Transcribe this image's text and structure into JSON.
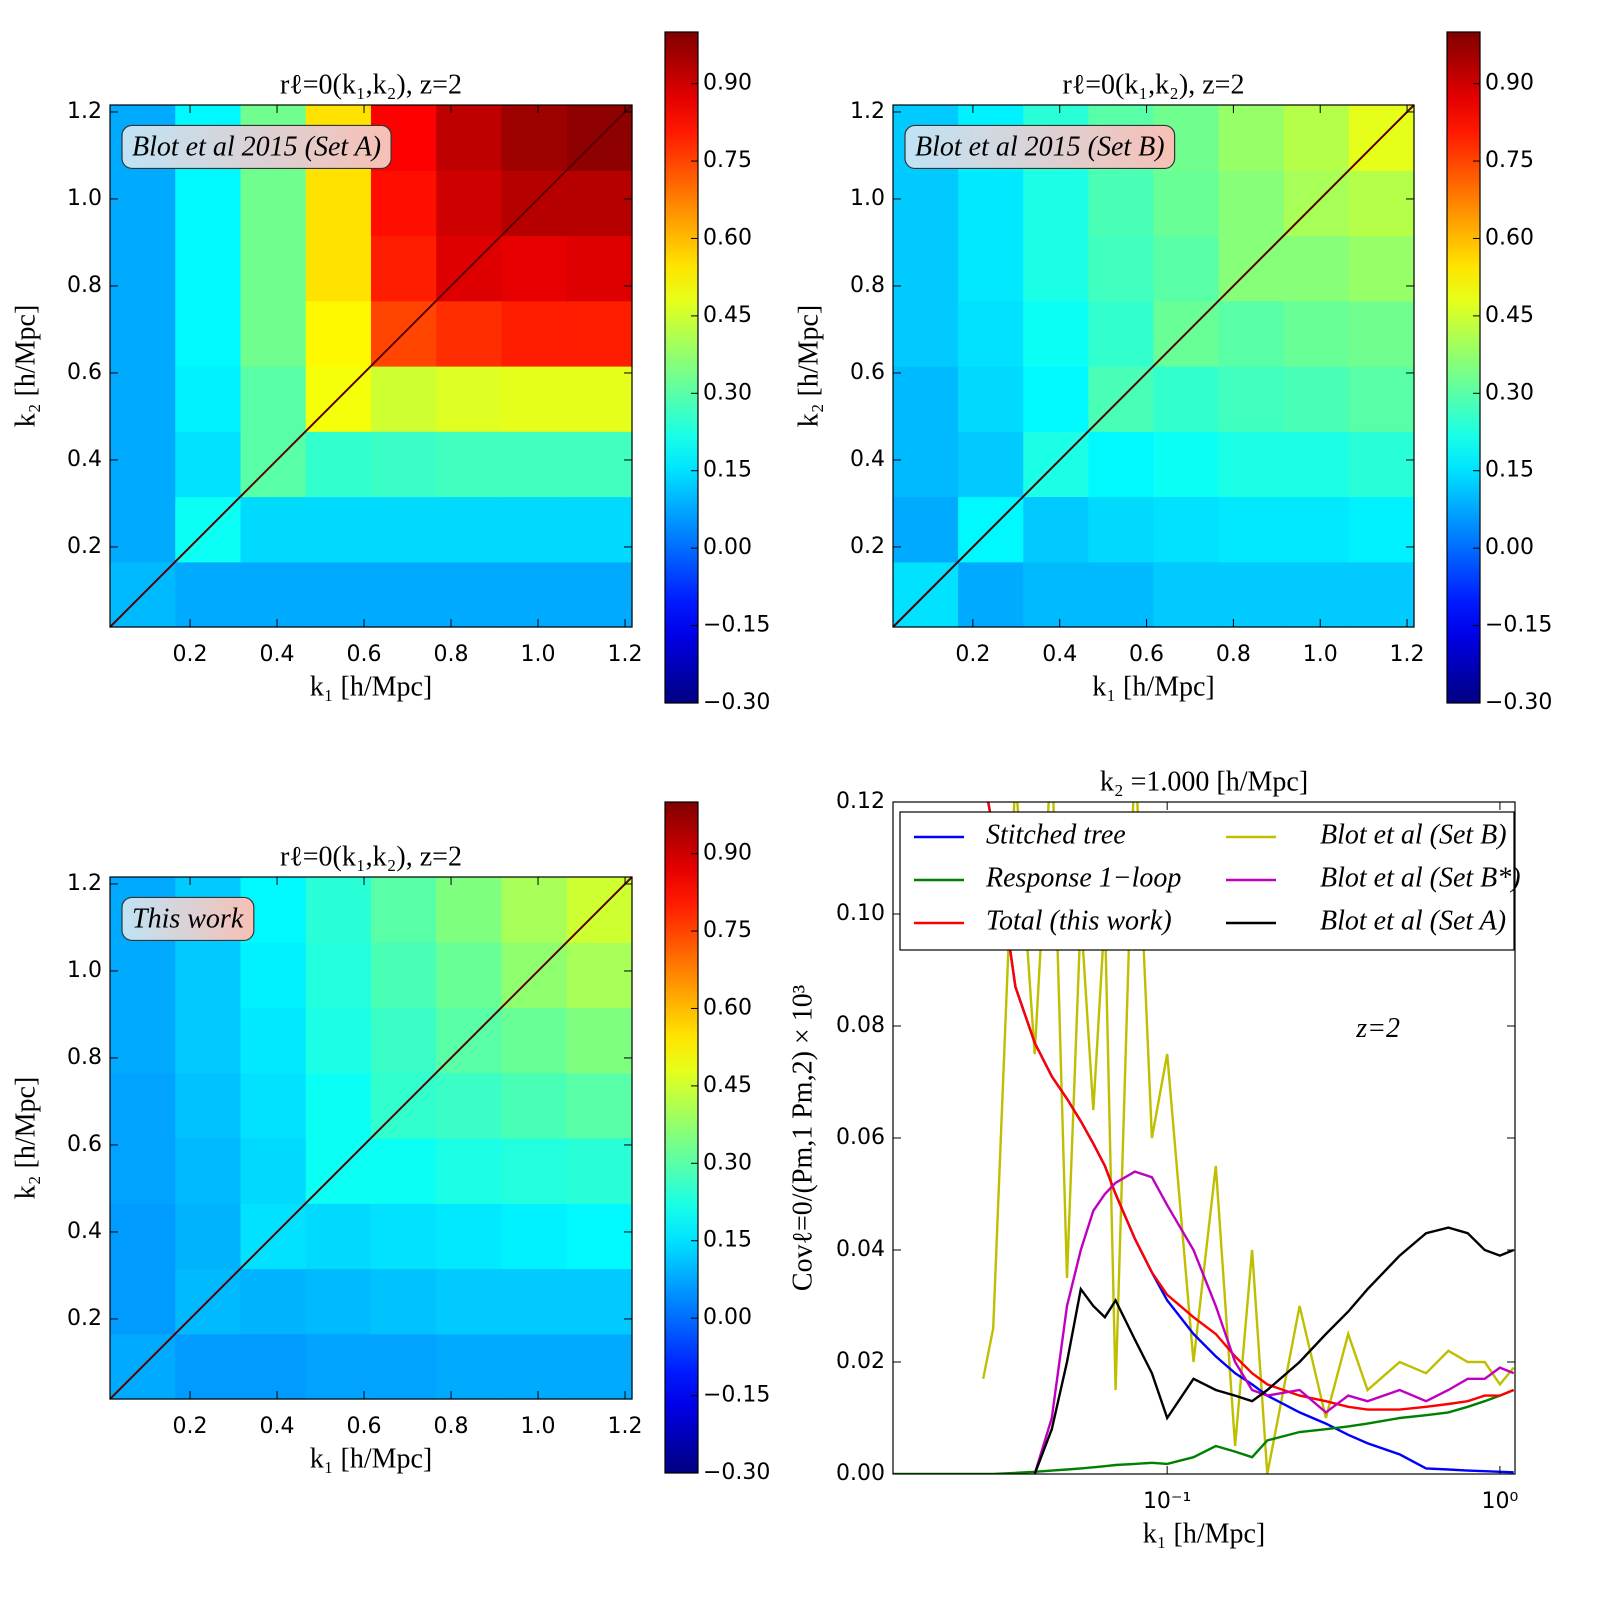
{
  "chart_data": [
    {
      "type": "heatmap",
      "title": "rℓ=0(k₁,k₂), z=2",
      "xlabel": "k₁ [h/Mpc]",
      "ylabel": "k₂ [h/Mpc]",
      "annotation": "Blot et al 2015 (Set A)",
      "x": [
        0.091,
        0.241,
        0.391,
        0.541,
        0.691,
        0.841,
        0.991,
        1.141
      ],
      "y": [
        0.091,
        0.241,
        0.391,
        0.541,
        0.691,
        0.841,
        0.991,
        1.141
      ],
      "z": [
        [
          0.1,
          0.08,
          0.08,
          0.08,
          0.08,
          0.08,
          0.08,
          0.08
        ],
        [
          0.08,
          0.2,
          0.14,
          0.14,
          0.14,
          0.14,
          0.14,
          0.14
        ],
        [
          0.08,
          0.15,
          0.3,
          0.25,
          0.26,
          0.27,
          0.27,
          0.27
        ],
        [
          0.08,
          0.17,
          0.3,
          0.5,
          0.45,
          0.47,
          0.48,
          0.48
        ],
        [
          0.08,
          0.18,
          0.33,
          0.52,
          0.75,
          0.78,
          0.8,
          0.8
        ],
        [
          0.08,
          0.18,
          0.33,
          0.55,
          0.8,
          0.88,
          0.87,
          0.88
        ],
        [
          0.08,
          0.18,
          0.33,
          0.55,
          0.82,
          0.9,
          0.93,
          0.93
        ],
        [
          0.08,
          0.18,
          0.33,
          0.55,
          0.84,
          0.92,
          0.96,
          0.98
        ]
      ],
      "xlim": [
        0.016,
        1.216
      ],
      "ylim": [
        0.016,
        1.216
      ],
      "xticks": [
        0.2,
        0.4,
        0.6,
        0.8,
        {
          "value": 1,
          "label": "1.0"
        },
        1.2
      ],
      "yticks": [
        0.2,
        0.4,
        0.6,
        0.8,
        {
          "value": 1,
          "label": "1.0"
        },
        1.2
      ],
      "zlim": [
        -0.3,
        1.0
      ],
      "zticks": [
        {
          "value": 0.9,
          "label": "0.90"
        },
        0.75,
        {
          "value": 0.6,
          "label": "0.60"
        },
        0.45,
        {
          "value": 0.3,
          "label": "0.30"
        },
        0.15,
        {
          "value": 0,
          "label": "0.00"
        },
        {
          "value": -0.15,
          "label": "−0.15"
        },
        {
          "value": -0.3,
          "label": "−0.30"
        }
      ]
    },
    {
      "type": "heatmap",
      "title": "rℓ=0(k₁,k₂), z=2",
      "xlabel": "k₁ [h/Mpc]",
      "ylabel": "k₂ [h/Mpc]",
      "annotation": "Blot et al 2015 (Set B)",
      "x": [
        0.091,
        0.241,
        0.391,
        0.541,
        0.691,
        0.841,
        0.991,
        1.141
      ],
      "y": [
        0.091,
        0.241,
        0.391,
        0.541,
        0.691,
        0.841,
        0.991,
        1.141
      ],
      "z": [
        [
          0.15,
          0.08,
          0.1,
          0.1,
          0.12,
          0.12,
          0.12,
          0.12
        ],
        [
          0.08,
          0.18,
          0.12,
          0.14,
          0.15,
          0.16,
          0.16,
          0.17
        ],
        [
          0.1,
          0.12,
          0.22,
          0.18,
          0.2,
          0.22,
          0.22,
          0.24
        ],
        [
          0.1,
          0.14,
          0.18,
          0.28,
          0.25,
          0.27,
          0.28,
          0.3
        ],
        [
          0.12,
          0.15,
          0.2,
          0.25,
          0.32,
          0.3,
          0.32,
          0.33
        ],
        [
          0.12,
          0.16,
          0.22,
          0.27,
          0.3,
          0.36,
          0.36,
          0.38
        ],
        [
          0.12,
          0.16,
          0.22,
          0.28,
          0.32,
          0.36,
          0.4,
          0.42
        ],
        [
          0.12,
          0.17,
          0.24,
          0.3,
          0.33,
          0.38,
          0.42,
          0.48
        ]
      ],
      "xlim": [
        0.016,
        1.216
      ],
      "ylim": [
        0.016,
        1.216
      ],
      "xticks": [
        0.2,
        0.4,
        0.6,
        0.8,
        {
          "value": 1,
          "label": "1.0"
        },
        1.2
      ],
      "yticks": [
        0.2,
        0.4,
        0.6,
        0.8,
        {
          "value": 1,
          "label": "1.0"
        },
        1.2
      ],
      "zlim": [
        -0.3,
        1.0
      ],
      "zticks": [
        {
          "value": 0.9,
          "label": "0.90"
        },
        0.75,
        {
          "value": 0.6,
          "label": "0.60"
        },
        0.45,
        {
          "value": 0.3,
          "label": "0.30"
        },
        0.15,
        {
          "value": 0,
          "label": "0.00"
        },
        {
          "value": -0.15,
          "label": "−0.15"
        },
        {
          "value": -0.3,
          "label": "−0.30"
        }
      ]
    },
    {
      "type": "heatmap",
      "title": "rℓ=0(k₁,k₂), z=2",
      "xlabel": "k₁ [h/Mpc]",
      "ylabel": "k₂ [h/Mpc]",
      "annotation": "This work",
      "x": [
        0.091,
        0.241,
        0.391,
        0.541,
        0.691,
        0.841,
        0.991,
        1.141
      ],
      "y": [
        0.091,
        0.241,
        0.391,
        0.541,
        0.691,
        0.841,
        0.991,
        1.141
      ],
      "z": [
        [
          0.08,
          0.06,
          0.06,
          0.07,
          0.07,
          0.08,
          0.08,
          0.08
        ],
        [
          0.06,
          0.1,
          0.09,
          0.1,
          0.11,
          0.12,
          0.12,
          0.12
        ],
        [
          0.06,
          0.09,
          0.15,
          0.14,
          0.15,
          0.16,
          0.17,
          0.18
        ],
        [
          0.07,
          0.1,
          0.14,
          0.2,
          0.2,
          0.22,
          0.23,
          0.24
        ],
        [
          0.07,
          0.11,
          0.15,
          0.2,
          0.25,
          0.26,
          0.28,
          0.3
        ],
        [
          0.08,
          0.12,
          0.16,
          0.22,
          0.26,
          0.3,
          0.32,
          0.35
        ],
        [
          0.08,
          0.12,
          0.17,
          0.23,
          0.28,
          0.32,
          0.37,
          0.4
        ],
        [
          0.08,
          0.12,
          0.18,
          0.24,
          0.3,
          0.35,
          0.4,
          0.45
        ]
      ],
      "xlim": [
        0.016,
        1.216
      ],
      "ylim": [
        0.016,
        1.216
      ],
      "xticks": [
        0.2,
        0.4,
        0.6,
        0.8,
        {
          "value": 1,
          "label": "1.0"
        },
        1.2
      ],
      "yticks": [
        0.2,
        0.4,
        0.6,
        0.8,
        {
          "value": 1,
          "label": "1.0"
        },
        1.2
      ],
      "zlim": [
        -0.3,
        1.0
      ],
      "zticks": [
        {
          "value": 0.9,
          "label": "0.90"
        },
        0.75,
        {
          "value": 0.6,
          "label": "0.60"
        },
        0.45,
        {
          "value": 0.3,
          "label": "0.30"
        },
        0.15,
        {
          "value": 0,
          "label": "0.00"
        },
        {
          "value": -0.15,
          "label": "−0.15"
        },
        {
          "value": -0.3,
          "label": "−0.30"
        }
      ]
    },
    {
      "type": "line",
      "title": "k₂ =1.000 [h/Mpc]",
      "xlabel": "k₁ [h/Mpc]",
      "ylabel": "Covℓ=0/(Pm,1 Pm,2) × 10³",
      "annotation": "z=2",
      "xscale": "log",
      "legend": "upper center",
      "x": [
        0.015,
        0.02,
        0.025,
        0.028,
        0.03,
        0.035,
        0.04,
        0.045,
        0.05,
        0.055,
        0.06,
        0.065,
        0.07,
        0.08,
        0.09,
        0.1,
        0.12,
        0.14,
        0.16,
        0.18,
        0.2,
        0.25,
        0.3,
        0.35,
        0.4,
        0.5,
        0.6,
        0.7,
        0.8,
        0.9,
        1.0,
        1.1
      ],
      "series": [
        {
          "name": "Stitched tree",
          "color": "#0000ff",
          "values": [
            null,
            null,
            null,
            0.125,
            0.115,
            0.087,
            0.077,
            0.071,
            0.067,
            0.063,
            0.059,
            0.055,
            0.05,
            0.042,
            0.036,
            0.031,
            0.025,
            0.021,
            0.018,
            0.016,
            0.014,
            0.011,
            0.009,
            0.007,
            0.0055,
            0.0035,
            0.001,
            0.0008,
            0.0006,
            0.0005,
            0.0004,
            0.0003
          ]
        },
        {
          "name": "Response 1−loop",
          "color": "#008000",
          "values": [
            0,
            0,
            0,
            0,
            0,
            0.0002,
            0.0004,
            0.0006,
            0.0008,
            0.001,
            0.0012,
            0.0014,
            0.0016,
            0.0018,
            0.002,
            0.0018,
            0.003,
            0.005,
            0.004,
            0.003,
            0.006,
            0.0075,
            0.008,
            0.0085,
            0.009,
            0.01,
            0.0105,
            0.011,
            0.012,
            0.013,
            0.014,
            0.015
          ]
        },
        {
          "name": "Total (this work)",
          "color": "#ff0000",
          "values": [
            null,
            null,
            null,
            0.125,
            0.115,
            0.087,
            0.077,
            0.071,
            0.067,
            0.063,
            0.059,
            0.055,
            0.05,
            0.042,
            0.036,
            0.032,
            0.028,
            0.025,
            0.021,
            0.018,
            0.016,
            0.014,
            0.013,
            0.012,
            0.0115,
            0.0115,
            0.012,
            0.0125,
            0.013,
            0.014,
            0.014,
            0.015
          ]
        },
        {
          "name": "Blot et al (Set B)",
          "color": "#bfbf00",
          "values": [
            null,
            null,
            null,
            0.017,
            0.026,
            0.125,
            0.075,
            0.13,
            0.035,
            0.1,
            0.065,
            0.1,
            0.015,
            0.13,
            0.06,
            0.075,
            0.02,
            0.055,
            0.005,
            0.04,
            0,
            0.03,
            0.01,
            0.025,
            0.015,
            0.02,
            0.018,
            0.022,
            0.02,
            0.02,
            0.016,
            0.019
          ]
        },
        {
          "name": "Blot et al (Set B*)",
          "color": "#bf00bf",
          "values": [
            null,
            null,
            null,
            null,
            null,
            null,
            0,
            0.01,
            0.03,
            0.04,
            0.047,
            0.05,
            0.052,
            0.054,
            0.053,
            0.048,
            0.04,
            0.03,
            0.02,
            0.015,
            0.014,
            0.015,
            0.011,
            0.014,
            0.013,
            0.015,
            0.013,
            0.015,
            0.017,
            0.017,
            0.019,
            0.018
          ]
        },
        {
          "name": "Blot et al (Set A)",
          "color": "#000000",
          "values": [
            null,
            null,
            null,
            null,
            null,
            null,
            0,
            0.008,
            0.02,
            0.033,
            0.03,
            0.028,
            0.031,
            0.024,
            0.018,
            0.01,
            0.017,
            0.015,
            0.014,
            0.013,
            0.015,
            0.02,
            0.025,
            0.029,
            0.033,
            0.039,
            0.043,
            0.044,
            0.043,
            0.04,
            0.039,
            0.04
          ]
        }
      ],
      "xlim": [
        0.015,
        1.11
      ],
      "ylim": [
        0,
        0.12
      ],
      "xticks": [
        {
          "value": 0.1,
          "label": "10⁻¹"
        },
        {
          "value": 1,
          "label": "10⁰"
        }
      ],
      "yticks": [
        {
          "value": 0,
          "label": "0.00"
        },
        0.02,
        0.04,
        0.06,
        0.08,
        {
          "value": 0.1,
          "label": "0.10"
        },
        0.12
      ]
    }
  ]
}
